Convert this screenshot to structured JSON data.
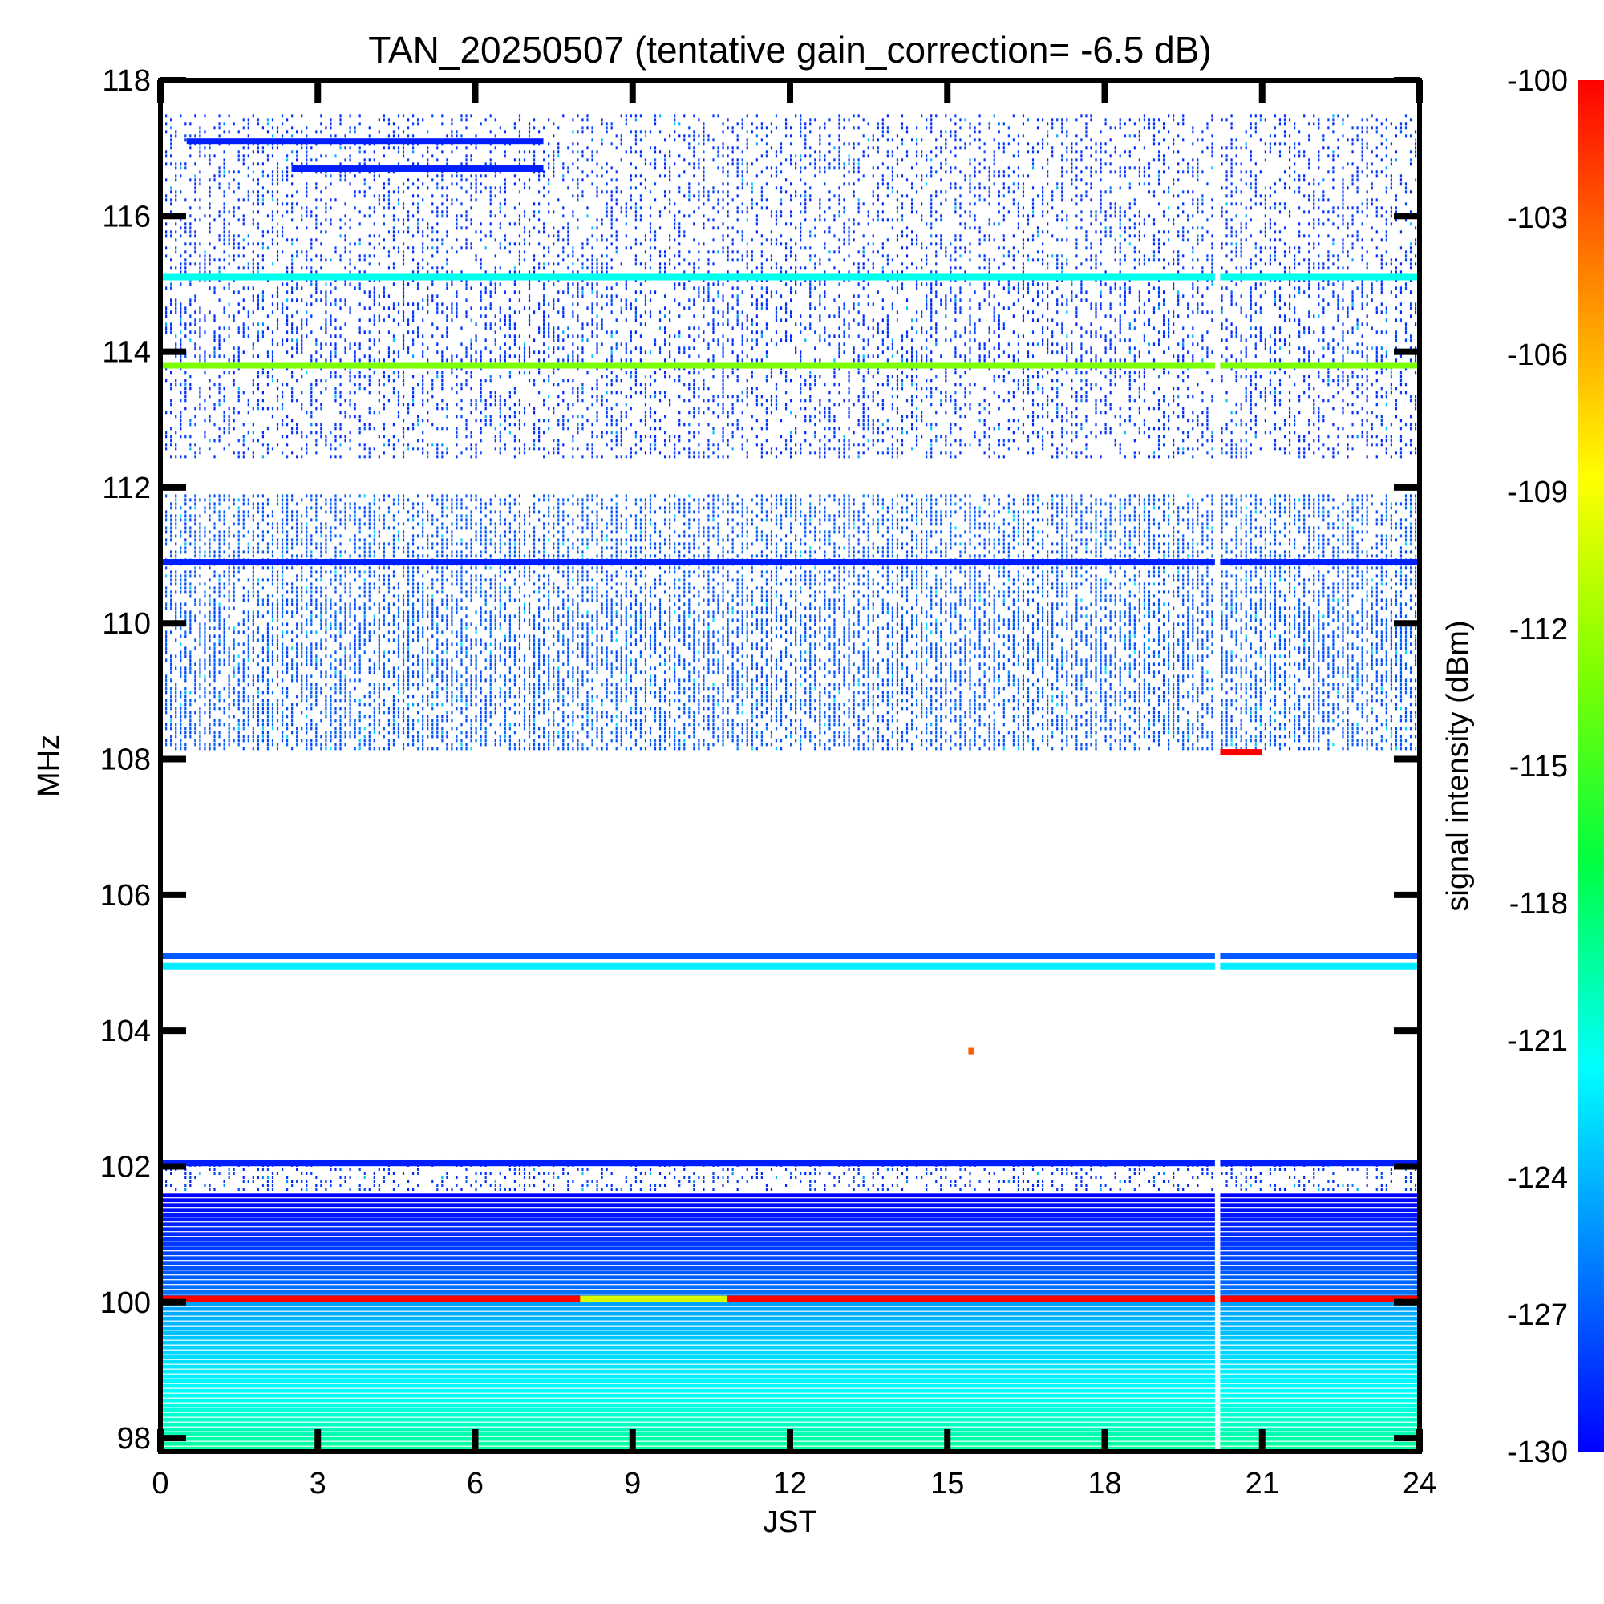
{
  "chart_data": {
    "type": "heatmap",
    "title": "TAN_20250507 (tentative gain_correction= -6.5 dB)",
    "xlabel": "JST",
    "ylabel": "MHz",
    "colorbar_label": "signal intensity (dBm)",
    "xlim": [
      0,
      24
    ],
    "ylim": [
      97.8,
      118.0
    ],
    "x_ticks": [
      0,
      3,
      6,
      9,
      12,
      15,
      18,
      21,
      24
    ],
    "x_tick_labels": [
      "0",
      "3",
      "6",
      "9",
      "12",
      "15",
      "18",
      "21",
      "24"
    ],
    "y_ticks": [
      98,
      100,
      102,
      104,
      106,
      108,
      110,
      112,
      114,
      116,
      118
    ],
    "y_tick_labels": [
      "98",
      "100",
      "102",
      "104",
      "106",
      "108",
      "110",
      "112",
      "114",
      "116",
      "118"
    ],
    "color_scale": {
      "min_dbm": -130,
      "max_dbm": -100,
      "ticks": [
        -100,
        -103,
        -106,
        -109,
        -112,
        -115,
        -118,
        -121,
        -124,
        -127,
        -130
      ],
      "tick_labels": [
        "-100",
        "-103",
        "-106",
        "-109",
        "-112",
        "-115",
        "-118",
        "-121",
        "-124",
        "-127",
        "-130"
      ],
      "colors": [
        "#0000ff",
        "#0080ff",
        "#00ffff",
        "#00ff40",
        "#80ff00",
        "#ffff00",
        "#ff8000",
        "#ff0000"
      ]
    },
    "data_gap_jst": [
      20.1,
      20.2
    ],
    "persistent_signals": [
      {
        "freq_mhz": 115.1,
        "dbm": -121,
        "jst_range": [
          0,
          24
        ]
      },
      {
        "freq_mhz": 113.8,
        "dbm": -113,
        "jst_range": [
          0,
          24
        ]
      },
      {
        "freq_mhz": 110.9,
        "dbm": -129,
        "jst_range": [
          0,
          24
        ]
      },
      {
        "freq_mhz": 108.1,
        "dbm": -100,
        "jst_range": [
          20.2,
          21.0
        ]
      },
      {
        "freq_mhz": 105.1,
        "dbm": -127,
        "jst_range": [
          0,
          24
        ]
      },
      {
        "freq_mhz": 104.95,
        "dbm": -122,
        "jst_range": [
          0,
          24
        ]
      },
      {
        "freq_mhz": 102.05,
        "dbm": -129,
        "jst_range": [
          0,
          24
        ]
      },
      {
        "freq_mhz": 100.05,
        "dbm": -100,
        "jst_range": [
          0,
          24
        ]
      },
      {
        "freq_mhz": 100.05,
        "dbm": -110,
        "jst_range": [
          8.0,
          10.8
        ]
      },
      {
        "freq_mhz": 117.1,
        "dbm": -129,
        "jst_range": [
          0.5,
          7.3
        ]
      },
      {
        "freq_mhz": 116.7,
        "dbm": -129,
        "jst_range": [
          2.5,
          7.3
        ]
      },
      {
        "freq_mhz": 103.7,
        "dbm": -103,
        "jst_range": [
          15.4,
          15.5
        ]
      }
    ],
    "noise_bands": [
      {
        "freq_range_mhz": [
          112.4,
          117.5
        ],
        "typical_dbm": -129,
        "density": "medium"
      },
      {
        "freq_range_mhz": [
          108.1,
          111.9
        ],
        "typical_dbm": -128,
        "density": "high"
      },
      {
        "freq_range_mhz": [
          101.6,
          102.1
        ],
        "typical_dbm": -129,
        "density": "medium"
      },
      {
        "freq_range_mhz": [
          100.1,
          101.6
        ],
        "typical_dbm_range": [
          -130,
          -126
        ],
        "density": "solid"
      },
      {
        "freq_range_mhz": [
          97.8,
          100.0
        ],
        "typical_dbm_range": [
          -126,
          -119
        ],
        "density": "solid"
      }
    ]
  }
}
